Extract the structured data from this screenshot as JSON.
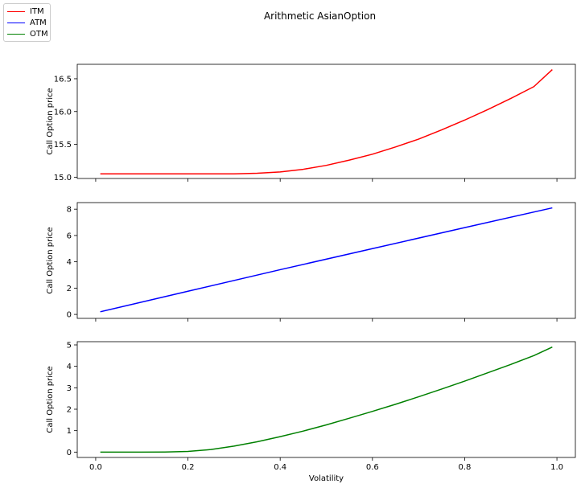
{
  "figure": {
    "title": "Arithmetic AsianOption"
  },
  "legend": {
    "items": [
      {
        "label": "ITM",
        "color": "#ff0000"
      },
      {
        "label": "ATM",
        "color": "#0000ff"
      },
      {
        "label": "OTM",
        "color": "#008000"
      }
    ]
  },
  "chart_data": [
    {
      "type": "line",
      "xlabel": "",
      "ylabel": "Call Option price",
      "xlim": [
        -0.04,
        1.04
      ],
      "ylim": [
        14.98,
        16.72
      ],
      "yticks": [
        15.0,
        15.5,
        16.0,
        16.5
      ],
      "ytick_labels": [
        "15.0",
        "15.5",
        "16.0",
        "16.5"
      ],
      "xticks": [
        0.0,
        0.2,
        0.4,
        0.6,
        0.8,
        1.0
      ],
      "xtick_labels": [],
      "grid": false,
      "series": [
        {
          "name": "ITM",
          "color": "#ff0000",
          "x": [
            0.01,
            0.1,
            0.2,
            0.3,
            0.35,
            0.4,
            0.45,
            0.5,
            0.55,
            0.6,
            0.65,
            0.7,
            0.75,
            0.8,
            0.85,
            0.9,
            0.95,
            0.99
          ],
          "values": [
            15.05,
            15.05,
            15.05,
            15.05,
            15.06,
            15.08,
            15.12,
            15.18,
            15.26,
            15.35,
            15.46,
            15.58,
            15.72,
            15.87,
            16.03,
            16.2,
            16.38,
            16.64
          ]
        }
      ]
    },
    {
      "type": "line",
      "xlabel": "",
      "ylabel": "Call Option price",
      "xlim": [
        -0.04,
        1.04
      ],
      "ylim": [
        -0.3,
        8.5
      ],
      "yticks": [
        0,
        2,
        4,
        6,
        8
      ],
      "ytick_labels": [
        "0",
        "2",
        "4",
        "6",
        "8"
      ],
      "xticks": [
        0.0,
        0.2,
        0.4,
        0.6,
        0.8,
        1.0
      ],
      "xtick_labels": [],
      "grid": false,
      "series": [
        {
          "name": "ATM",
          "color": "#0000ff",
          "x": [
            0.01,
            0.2,
            0.4,
            0.6,
            0.8,
            0.99
          ],
          "values": [
            0.2,
            1.76,
            3.4,
            5.0,
            6.6,
            8.1
          ]
        }
      ]
    },
    {
      "type": "line",
      "xlabel": "Volatility",
      "ylabel": "Call Option price",
      "xlim": [
        -0.04,
        1.04
      ],
      "ylim": [
        -0.25,
        5.15
      ],
      "yticks": [
        0,
        1,
        2,
        3,
        4,
        5
      ],
      "ytick_labels": [
        "0",
        "1",
        "2",
        "3",
        "4",
        "5"
      ],
      "xticks": [
        0.0,
        0.2,
        0.4,
        0.6,
        0.8,
        1.0
      ],
      "xtick_labels": [
        "0.0",
        "0.2",
        "0.4",
        "0.6",
        "0.8",
        "1.0"
      ],
      "grid": false,
      "series": [
        {
          "name": "OTM",
          "color": "#008000",
          "x": [
            0.01,
            0.1,
            0.15,
            0.2,
            0.25,
            0.3,
            0.35,
            0.4,
            0.45,
            0.5,
            0.55,
            0.6,
            0.65,
            0.7,
            0.75,
            0.8,
            0.85,
            0.9,
            0.95,
            0.99
          ],
          "values": [
            0.0,
            0.0,
            0.005,
            0.03,
            0.12,
            0.28,
            0.48,
            0.72,
            0.98,
            1.27,
            1.58,
            1.9,
            2.23,
            2.58,
            2.94,
            3.31,
            3.7,
            4.09,
            4.5,
            4.9
          ]
        }
      ]
    }
  ]
}
